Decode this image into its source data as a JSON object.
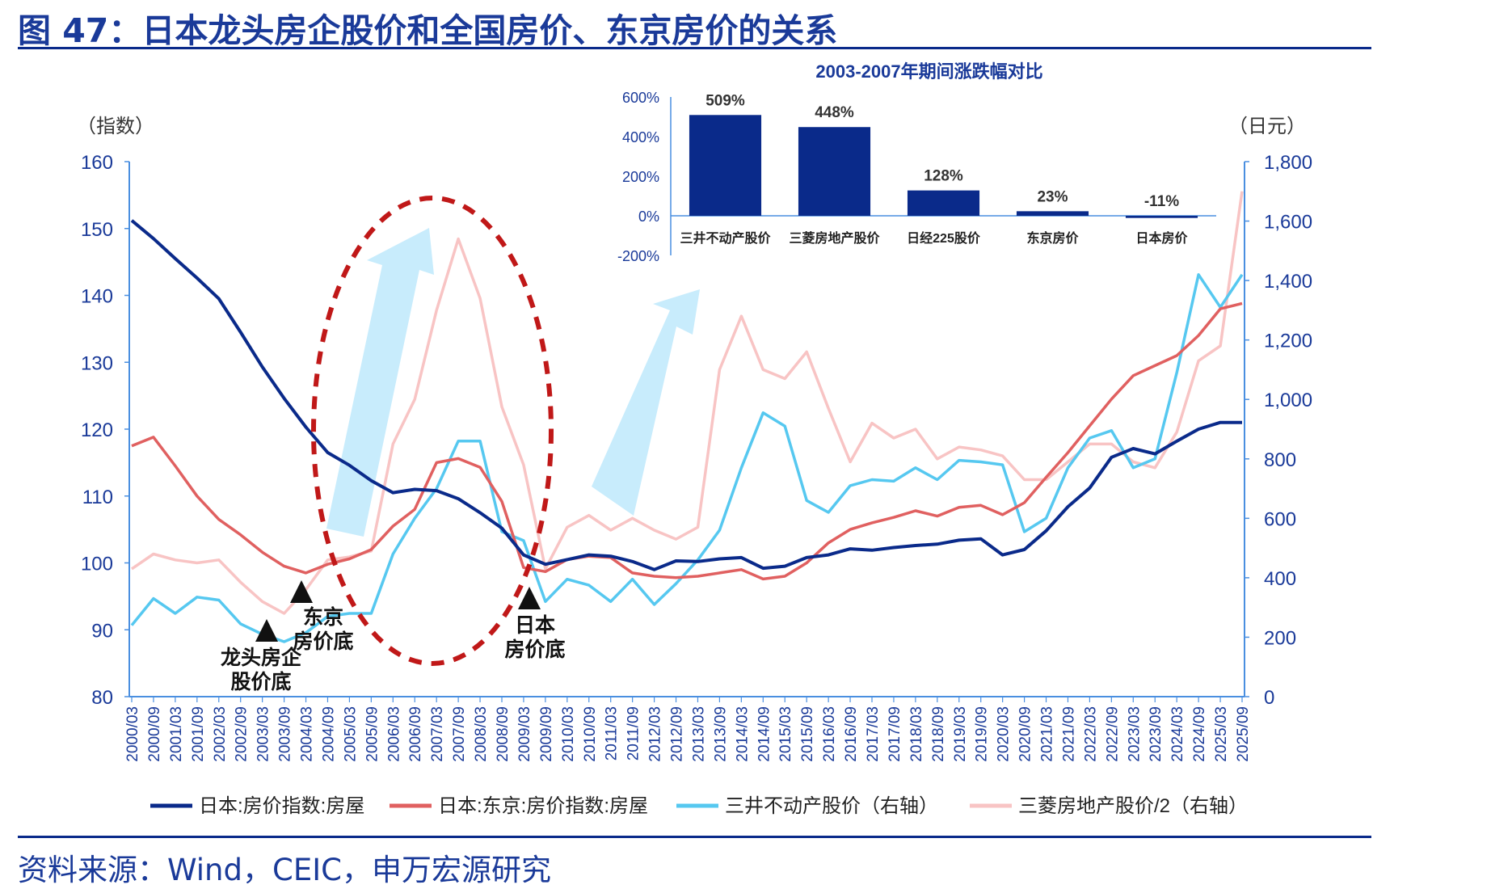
{
  "figure": {
    "title": "图 47：日本龙头房企股价和全国房价、东京房价的关系",
    "source": "资料来源：Wind，CEIC，申万宏源研究",
    "annotations": [
      "龙头房企股价底",
      "东京房价底",
      "日本房价底"
    ]
  },
  "colors": {
    "japan": "#0a2a8a",
    "tokyo": "#e06060",
    "mitsui": "#56c8f0",
    "mitsubishi": "#f8c4c4",
    "axis": "#4a8fe0",
    "title": "#1a3a99",
    "ellipse": "#c01818",
    "arrow": "#c8ecfc",
    "inset_bar": "#0a2a8a"
  },
  "chart_data": [
    {
      "type": "line",
      "title": "",
      "left_unit": "（指数）",
      "right_unit": "（日元）",
      "ylim_left": [
        80,
        160
      ],
      "ylim_right": [
        0,
        1800
      ],
      "yticks_left": [
        "80",
        "90",
        "100",
        "110",
        "120",
        "130",
        "140",
        "150",
        "160"
      ],
      "yticks_right": [
        "0",
        "200",
        "400",
        "600",
        "800",
        "1,000",
        "1,200",
        "1,400",
        "1,600",
        "1,800"
      ],
      "x_labels": [
        "2000/03",
        "2000/09",
        "2001/03",
        "2001/09",
        "2002/03",
        "2002/09",
        "2003/03",
        "2003/09",
        "2004/03",
        "2004/09",
        "2005/03",
        "2005/09",
        "2006/03",
        "2006/09",
        "2007/03",
        "2007/09",
        "2008/03",
        "2008/09",
        "2009/03",
        "2009/09",
        "2010/03",
        "2010/09",
        "2011/03",
        "2011/09",
        "2012/03",
        "2012/09",
        "2013/03",
        "2013/09",
        "2014/03",
        "2014/09",
        "2015/03",
        "2015/09",
        "2016/03",
        "2016/09",
        "2017/03",
        "2017/09",
        "2018/03",
        "2018/09",
        "2019/03",
        "2019/09",
        "2020/03",
        "2020/09",
        "2021/03",
        "2021/09",
        "2022/03",
        "2022/09",
        "2023/03",
        "2023/09",
        "2024/03",
        "2024/09",
        "2025/03",
        "2025/09"
      ],
      "legend_position": "bottom",
      "series": [
        {
          "name": "日本:房价指数:房屋",
          "axis": "left",
          "color_key": "japan",
          "values": [
            151.2,
            148.5,
            145.5,
            142.6,
            139.5,
            134.5,
            129.3,
            124.6,
            120.3,
            116.5,
            114.6,
            112.3,
            110.5,
            111.0,
            110.8,
            109.6,
            107.5,
            105.2,
            101.2,
            99.8,
            100.5,
            101.2,
            101.0,
            100.2,
            99.0,
            100.3,
            100.2,
            100.6,
            100.8,
            99.2,
            99.5,
            100.8,
            101.2,
            102.1,
            101.9,
            102.3,
            102.6,
            102.8,
            103.4,
            103.6,
            101.2,
            102.0,
            104.8,
            108.4,
            111.2,
            115.8,
            117.1,
            116.3,
            118.2,
            120.0,
            121.0,
            121.0
          ]
        },
        {
          "name": "日本:东京:房价指数:房屋",
          "axis": "left",
          "color_key": "tokyo",
          "values": [
            117.5,
            118.8,
            114.5,
            110.0,
            106.5,
            104.2,
            101.6,
            99.5,
            98.5,
            99.8,
            100.6,
            102.0,
            105.5,
            108.0,
            115.0,
            115.6,
            114.3,
            109.2,
            99.3,
            98.7,
            100.5,
            101.0,
            100.8,
            98.5,
            98.0,
            97.8,
            98.0,
            98.5,
            99.0,
            97.6,
            98.0,
            100.0,
            103.0,
            105.0,
            106.0,
            106.8,
            107.8,
            107.0,
            108.3,
            108.6,
            107.2,
            109.0,
            112.8,
            116.5,
            120.5,
            124.5,
            128.0,
            129.5,
            131.0,
            134.0,
            138.0,
            138.8
          ]
        },
        {
          "name": "三井不动产股价（右轴）",
          "axis": "right",
          "color_key": "mitsui",
          "values": [
            240,
            330,
            280,
            335,
            325,
            245,
            210,
            185,
            215,
            270,
            280,
            280,
            480,
            600,
            700,
            860,
            860,
            555,
            525,
            320,
            395,
            375,
            320,
            395,
            310,
            380,
            460,
            560,
            770,
            955,
            910,
            660,
            620,
            710,
            730,
            725,
            770,
            730,
            795,
            790,
            780,
            555,
            600,
            770,
            870,
            895,
            770,
            800,
            1090,
            1420,
            1310,
            1420
          ]
        },
        {
          "name": "三菱房地产股价/2（右轴）",
          "axis": "right",
          "color_key": "mitsubishi",
          "values": [
            430,
            480,
            460,
            450,
            460,
            385,
            320,
            280,
            360,
            460,
            470,
            490,
            850,
            1000,
            1300,
            1540,
            1340,
            975,
            780,
            430,
            570,
            610,
            560,
            600,
            560,
            530,
            570,
            1100,
            1280,
            1100,
            1070,
            1160,
            970,
            790,
            920,
            870,
            900,
            800,
            840,
            830,
            810,
            730,
            730,
            790,
            850,
            850,
            790,
            770,
            890,
            1130,
            1180,
            1700
          ]
        }
      ]
    },
    {
      "type": "bar",
      "title": "2003-2007年期间涨跌幅对比",
      "categories": [
        "三井不动产股价",
        "三菱房地产股价",
        "日经225股价",
        "东京房价",
        "日本房价"
      ],
      "values": [
        509,
        448,
        128,
        23,
        -11
      ],
      "value_labels": [
        "509%",
        "448%",
        "128%",
        "23%",
        "-11%"
      ],
      "ylim": [
        -200,
        600
      ],
      "yticks": [
        "-200%",
        "0%",
        "200%",
        "400%",
        "600%"
      ]
    }
  ]
}
